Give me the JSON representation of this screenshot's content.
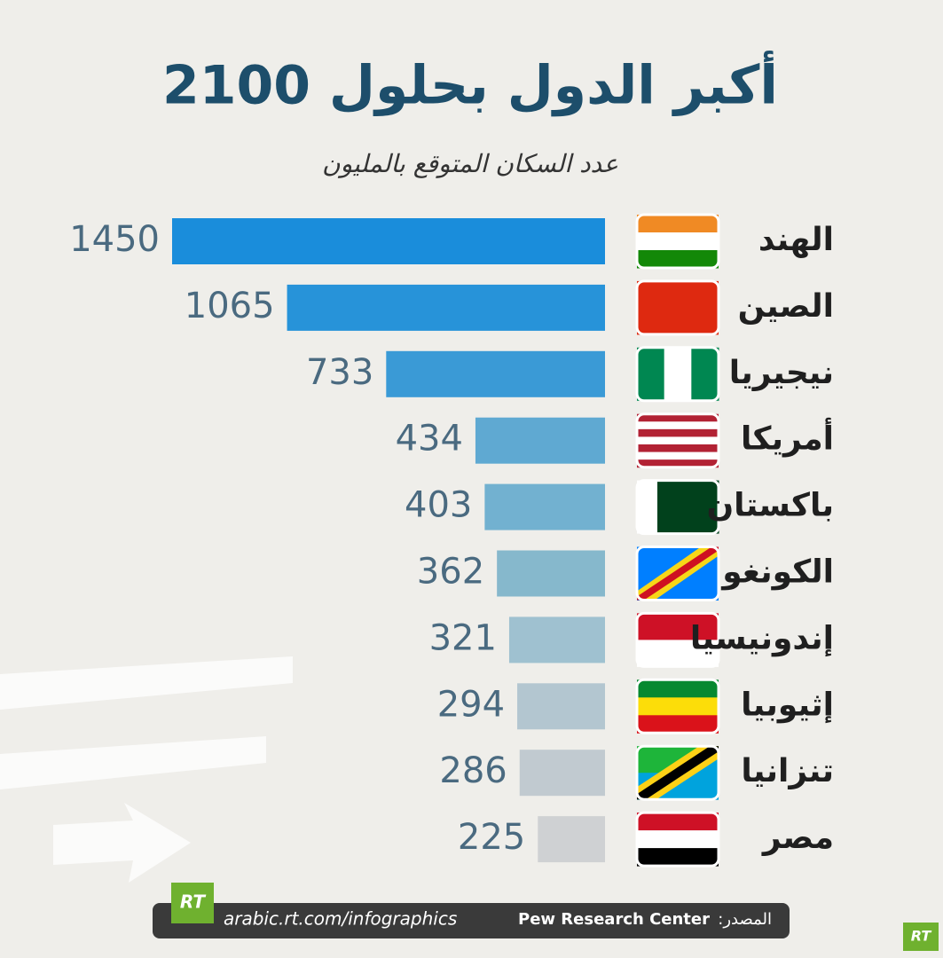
{
  "chart_data": {
    "type": "bar",
    "orientation": "horizontal",
    "title": "أكبر الدول بحلول 2100",
    "subtitle": "عدد السكان المتوقع بالمليون",
    "categories": [
      "الهند",
      "الصين",
      "نيجيريا",
      "أمريكا",
      "باكستان",
      "الكونغو",
      "إندونيسيا",
      "إثيوبيا",
      "تنزانيا",
      "مصر"
    ],
    "values": [
      1450,
      1065,
      733,
      434,
      403,
      362,
      321,
      294,
      286,
      225
    ],
    "colors": [
      "#1a8ddb",
      "#2793d9",
      "#3a9ad6",
      "#5fa9d2",
      "#72b1d0",
      "#86b8cc",
      "#9fc1d0",
      "#b3c6d0",
      "#c1cad0",
      "#cfd1d3"
    ]
  },
  "footer": {
    "logo": "RT",
    "url": "arabic.rt.com/infographics",
    "source_label": "المصدر:",
    "source": "Pew Research Center",
    "corner_logo": "RT"
  }
}
